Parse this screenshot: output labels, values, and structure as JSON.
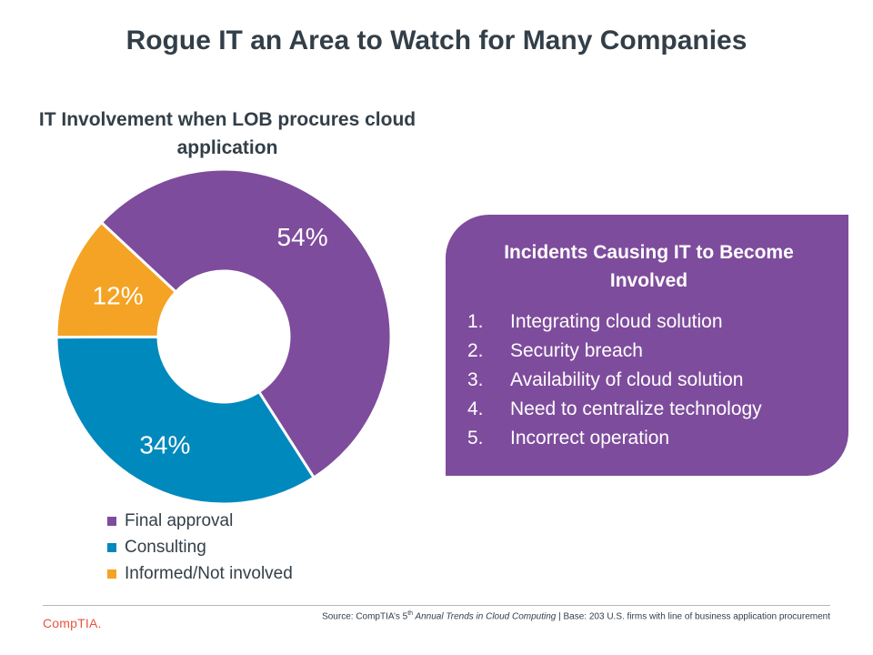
{
  "slide": {
    "title": "Rogue IT an Area to Watch for Many Companies"
  },
  "chart_data": {
    "type": "pie",
    "subtype": "donut",
    "title": "IT Involvement when LOB procures cloud application",
    "categories": [
      "Final approval",
      "Consulting",
      "Informed/Not involved"
    ],
    "values": [
      54,
      34,
      12
    ],
    "labels": [
      "54%",
      "34%",
      "12%"
    ],
    "colors": [
      "#7e4c9c",
      "#0089bd",
      "#f4a324"
    ],
    "unit": "%",
    "legend_position": "bottom-left"
  },
  "incidents": {
    "title": "Incidents Causing IT to Become Involved",
    "items": [
      {
        "num": "1.",
        "text": "Integrating cloud solution"
      },
      {
        "num": "2.",
        "text": "Security breach"
      },
      {
        "num": "3.",
        "text": "Availability of cloud solution"
      },
      {
        "num": "4.",
        "text": "Need to centralize technology"
      },
      {
        "num": "5.",
        "text": "Incorrect operation"
      }
    ],
    "box_color": "#7e4c9c"
  },
  "footer": {
    "logo": "CompTIA.",
    "source_prefix": "Source: CompTIA’s 5",
    "source_sup": "th",
    "source_report": " Annual Trends in Cloud Computing",
    "source_suffix": " | Base: 203 U.S. firms with line of business application procurement"
  }
}
